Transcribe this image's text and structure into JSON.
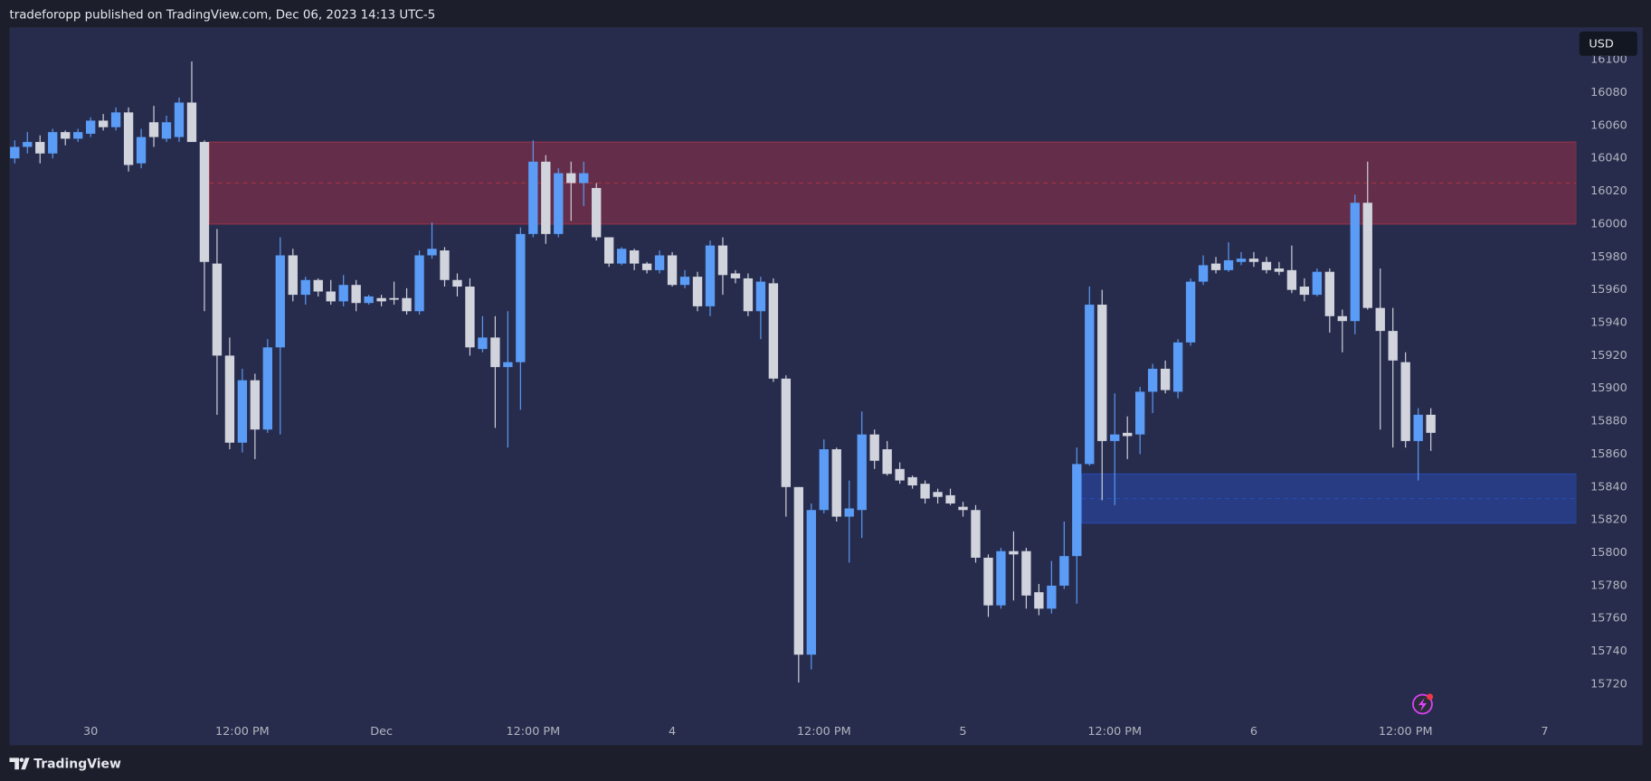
{
  "header": {
    "text": "tradeforopp published on TradingView.com, Dec 06, 2023 14:13 UTC-5",
    "currency": "USD",
    "footer": "TradingView"
  },
  "chart_data": {
    "type": "candlestick",
    "categories": [
      null,
      null,
      null,
      null,
      null,
      null,
      "30",
      null,
      null,
      null,
      null,
      null,
      null,
      null,
      null,
      null,
      null,
      null,
      "12:00 PM",
      null,
      null,
      null,
      null,
      null,
      null,
      null,
      null,
      null,
      null,
      "Dec",
      null,
      null,
      null,
      null,
      null,
      null,
      null,
      null,
      null,
      null,
      null,
      "12:00 PM",
      null,
      null,
      null,
      null,
      null,
      null,
      null,
      null,
      null,
      null,
      "4",
      null,
      null,
      null,
      null,
      null,
      null,
      null,
      null,
      null,
      null,
      null,
      "12:00 PM",
      null,
      null,
      null,
      null,
      null,
      null,
      null,
      null,
      null,
      null,
      "5",
      null,
      null,
      null,
      null,
      null,
      null,
      null,
      null,
      null,
      null,
      null,
      "12:00 PM",
      null,
      null,
      null,
      null,
      null,
      null,
      null,
      null,
      null,
      null,
      "6",
      null,
      null,
      null,
      null,
      null,
      null,
      null,
      null,
      null,
      null,
      null,
      "12:00 PM",
      null,
      null,
      null,
      null,
      null,
      null,
      null,
      null,
      null,
      null,
      "7",
      null,
      null
    ],
    "open": [
      16040,
      16047,
      16050,
      16043,
      16056,
      16052,
      16055,
      16063,
      16059,
      16068,
      16037,
      16062,
      16052,
      16053,
      16074,
      16050,
      15976,
      15920,
      15867,
      15905,
      15875,
      15925,
      15981,
      15957,
      15966,
      15959,
      15953,
      15963,
      15952,
      15955,
      15955,
      15955,
      15947,
      15981,
      15984,
      15966,
      15962,
      15924,
      15931,
      15913,
      15916,
      15994,
      16038,
      15994,
      16031,
      16025,
      16022,
      15992,
      15976,
      15984,
      15976,
      15972,
      15981,
      15963,
      15968,
      15950,
      15987,
      15970,
      15967,
      15947,
      15964,
      15906,
      15840,
      15738,
      15826,
      15863,
      15822,
      15826,
      15872,
      15863,
      15851,
      15846,
      15842,
      15837,
      15835,
      15828,
      15826,
      15797,
      15768,
      15801,
      15801,
      15776,
      15766,
      15780,
      15798,
      15854,
      15951,
      15868,
      15873,
      15872,
      15898,
      15912,
      15898,
      15928,
      15965,
      15976,
      15972,
      15977,
      15979,
      15977,
      15973,
      15972,
      15962,
      15957,
      15971,
      15944,
      15941,
      16013,
      15949,
      15935,
      15916,
      15868,
      15884,
      null,
      null,
      null,
      null,
      null,
      null,
      null,
      null,
      null,
      null,
      null
    ],
    "high": [
      16051,
      16056,
      16054,
      16058,
      16057,
      16058,
      16065,
      16067,
      16071,
      16071,
      16058,
      16072,
      16066,
      16077,
      16099,
      16051,
      15997,
      15931,
      15912,
      15909,
      15930,
      15992,
      15985,
      15968,
      15967,
      15966,
      15969,
      15966,
      15957,
      15957,
      15965,
      15961,
      15984,
      16001,
      15986,
      15970,
      15967,
      15944,
      15944,
      15947,
      15998,
      16051,
      16042,
      16034,
      16038,
      16038,
      16025,
      15992,
      15986,
      15985,
      15977,
      15984,
      15983,
      15972,
      15971,
      15990,
      15992,
      15972,
      15970,
      15968,
      15967,
      15908,
      15840,
      15830,
      15869,
      15864,
      15844,
      15886,
      15875,
      15868,
      15855,
      15847,
      15844,
      15839,
      15839,
      15831,
      15829,
      15799,
      15803,
      15813,
      15803,
      15781,
      15795,
      15819,
      15864,
      15962,
      15960,
      15897,
      15883,
      15901,
      15915,
      15917,
      15930,
      15967,
      15981,
      15980,
      15989,
      15983,
      15983,
      15980,
      15977,
      15987,
      15967,
      15973,
      15973,
      15948,
      16018,
      16038,
      15973,
      15949,
      15922,
      15888,
      15888,
      null,
      null,
      null,
      null,
      null,
      null,
      null,
      null,
      null,
      null,
      null
    ],
    "low": [
      16037,
      16043,
      16037,
      16040,
      16048,
      16050,
      16053,
      16057,
      16057,
      16032,
      16034,
      16047,
      16050,
      16050,
      16050,
      15947,
      15884,
      15863,
      15861,
      15857,
      15873,
      15872,
      15953,
      15951,
      15956,
      15951,
      15950,
      15947,
      15951,
      15950,
      15951,
      15945,
      15945,
      15979,
      15962,
      15956,
      15920,
      15922,
      15876,
      15864,
      15887,
      15992,
      15988,
      15992,
      16002,
      16011,
      15990,
      15974,
      15975,
      15972,
      15970,
      15970,
      15962,
      15961,
      15947,
      15944,
      15957,
      15964,
      15944,
      15930,
      15904,
      15822,
      15721,
      15729,
      15824,
      15819,
      15794,
      15809,
      15851,
      15847,
      15842,
      15839,
      15830,
      15830,
      15829,
      15822,
      15794,
      15761,
      15766,
      15771,
      15766,
      15762,
      15763,
      15778,
      15769,
      15853,
      15832,
      15829,
      15857,
      15860,
      15885,
      15897,
      15894,
      15926,
      15963,
      15970,
      15971,
      15975,
      15974,
      15970,
      15969,
      15958,
      15953,
      15956,
      15934,
      15922,
      15933,
      15948,
      15875,
      15864,
      15864,
      15844,
      15862,
      null,
      null,
      null,
      null,
      null,
      null,
      null,
      null,
      null,
      null,
      null
    ],
    "close": [
      16047,
      16050,
      16043,
      16056,
      16052,
      16056,
      16063,
      16059,
      16068,
      16036,
      16053,
      16053,
      16062,
      16074,
      16050,
      15977,
      15920,
      15867,
      15905,
      15875,
      15925,
      15981,
      15957,
      15966,
      15959,
      15953,
      15963,
      15952,
      15956,
      15953,
      15954,
      15947,
      15981,
      15985,
      15966,
      15962,
      15925,
      15931,
      15913,
      15916,
      15994,
      16038,
      15994,
      16031,
      16025,
      16031,
      15992,
      15976,
      15985,
      15976,
      15972,
      15981,
      15963,
      15968,
      15950,
      15987,
      15969,
      15967,
      15947,
      15965,
      15906,
      15840,
      15738,
      15826,
      15863,
      15822,
      15827,
      15872,
      15856,
      15848,
      15844,
      15841,
      15833,
      15834,
      15830,
      15826,
      15797,
      15768,
      15801,
      15799,
      15774,
      15766,
      15780,
      15798,
      15854,
      15951,
      15868,
      15872,
      15871,
      15898,
      15912,
      15899,
      15928,
      15965,
      15975,
      15972,
      15978,
      15979,
      15977,
      15972,
      15971,
      15960,
      15957,
      15971,
      15944,
      15941,
      16013,
      15949,
      15935,
      15917,
      15868,
      15884,
      15873,
      null,
      null,
      null,
      null,
      null,
      null,
      null,
      null,
      null,
      null,
      null
    ],
    "up_color": "#5b9cf6",
    "down_color": "#d1d4dc",
    "zones": [
      {
        "range": [
          16000,
          16050
        ],
        "start": 15,
        "color": "#f23645"
      },
      {
        "range": [
          15818,
          15848
        ],
        "start": 84,
        "color": "#2962ff"
      }
    ],
    "ylim": [
      15700,
      16120
    ],
    "yticks": [
      15720,
      15740,
      15760,
      15780,
      15800,
      15820,
      15840,
      15860,
      15880,
      15900,
      15920,
      15940,
      15960,
      15980,
      16000,
      16020,
      16040,
      16060,
      16080,
      16100
    ],
    "grid": false
  }
}
